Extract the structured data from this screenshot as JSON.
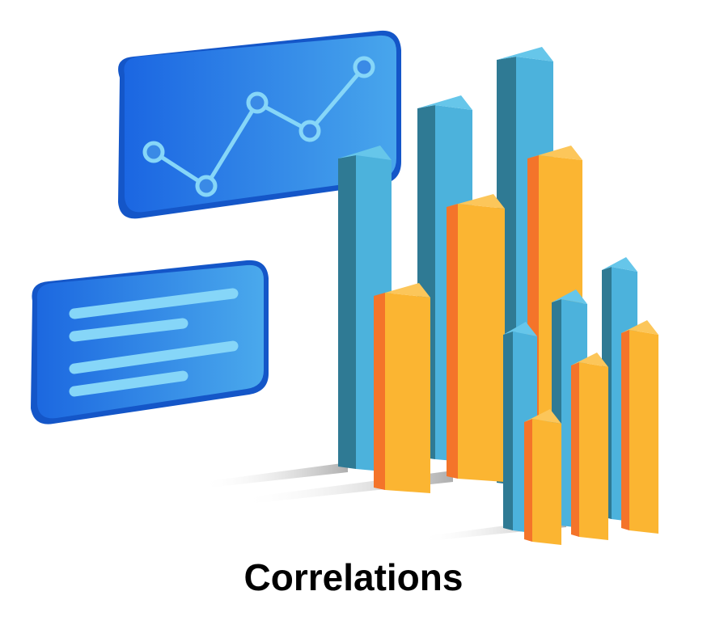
{
  "caption": "Correlations",
  "colors": {
    "panel_light": "#3f9be6",
    "panel_dark": "#1a63e0",
    "panel_line": "#7fd0f7",
    "bar_blue_front": "#4cb2dc",
    "bar_blue_side": "#2f7a94",
    "bar_blue_top": "#66c6ea",
    "bar_orange_front": "#fbb532",
    "bar_orange_side": "#f4742a",
    "bar_orange_top": "#fcc65a",
    "shadow": "#c8c8c8"
  },
  "icons": [
    "line-chart-card-icon",
    "text-lines-card-icon",
    "3d-bar-chart-icon"
  ]
}
